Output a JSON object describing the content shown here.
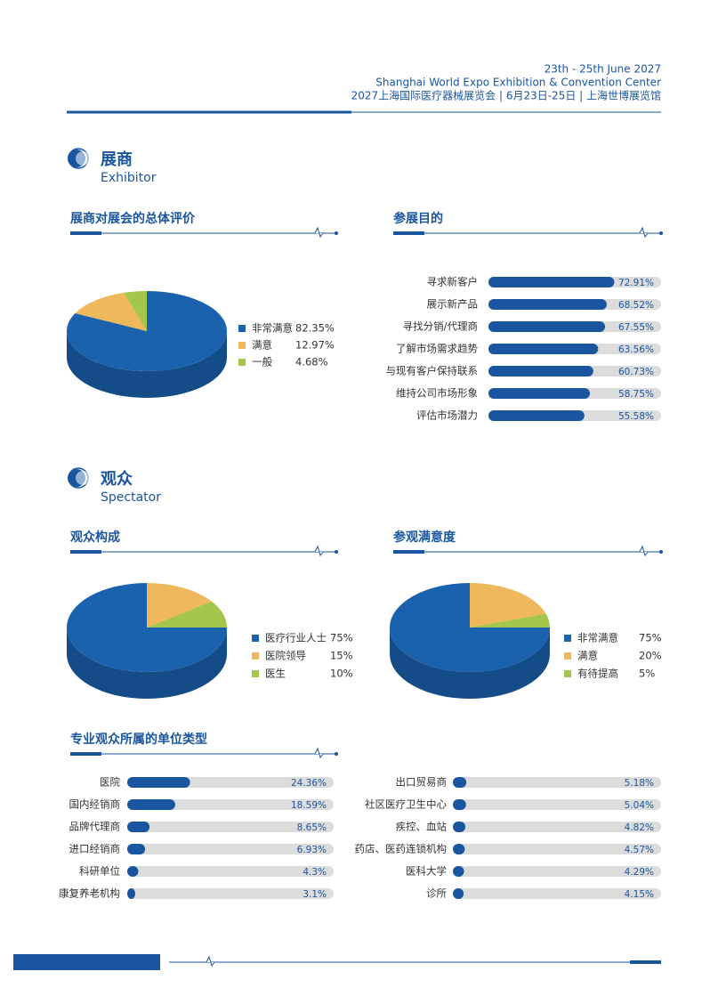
{
  "header": {
    "lines": [
      "23th - 25th June 2027",
      "Shanghai World Expo Exhibition & Convention Center",
      "2027上海国际医疗器械展览会 | 6月23日-25日 | 上海世博展览馆"
    ]
  },
  "sections": [
    {
      "title": "展商",
      "subtitle": "Exhibitor"
    },
    {
      "title": "观众",
      "subtitle": "Spectator"
    }
  ],
  "chart_data": [
    {
      "type": "pie",
      "title": "展商对展会的总体评价",
      "categories": [
        "非常满意",
        "满意",
        "一般"
      ],
      "values": [
        82.35,
        12.97,
        4.68
      ],
      "value_labels": [
        "82.35%",
        "12.97%",
        "4.68%"
      ],
      "colors": [
        "#1a62ad",
        "#efb85c",
        "#a4c64b"
      ],
      "startangle": 0
    },
    {
      "type": "bar",
      "title": "参展目的",
      "categories": [
        "寻求新客户",
        "展示新产品",
        "寻找分销/代理商",
        "了解市场需求趋势",
        "与现有客户保持联系",
        "维持公司市场形象",
        "评估市场潜力"
      ],
      "values": [
        72.91,
        68.52,
        67.55,
        63.56,
        60.73,
        58.75,
        55.58
      ],
      "value_labels": [
        "72.91%",
        "68.52%",
        "67.55%",
        "63.56%",
        "60.73%",
        "58.75%",
        "55.58%"
      ],
      "color": "#1a56a0",
      "track_color": "#dcdcdc",
      "xlim": [
        0,
        100
      ]
    },
    {
      "type": "pie",
      "title": "观众构成",
      "categories": [
        "医疗行业人士",
        "医院领导",
        "医生"
      ],
      "values": [
        75,
        15,
        10
      ],
      "value_labels": [
        "75%",
        "15%",
        "10%"
      ],
      "colors": [
        "#1a62ad",
        "#efb85c",
        "#a4c64b"
      ],
      "startangle": 90
    },
    {
      "type": "pie",
      "title": "参观满意度",
      "categories": [
        "非常满意",
        "满意",
        "有待提高"
      ],
      "values": [
        75,
        20,
        5
      ],
      "value_labels": [
        "75%",
        "20%",
        "5%"
      ],
      "colors": [
        "#1a62ad",
        "#efb85c",
        "#a4c64b"
      ],
      "startangle": 90
    },
    {
      "type": "bar",
      "title": "专业观众所属的单位类型",
      "categories": [
        "医院",
        "国内经销商",
        "品牌代理商",
        "进口经销商",
        "科研单位",
        "康复养老机构",
        "出口贸易商",
        "社区医疗卫生中心",
        "疾控、血站",
        "药店、医药连锁机构",
        "医科大学",
        "诊所"
      ],
      "values": [
        24.36,
        18.59,
        8.65,
        6.93,
        4.3,
        3.1,
        5.18,
        5.04,
        4.82,
        4.57,
        4.29,
        4.15
      ],
      "value_labels": [
        "24.36%",
        "18.59%",
        "8.65%",
        "6.93%",
        "4.3%",
        "3.1%",
        "5.18%",
        "5.04%",
        "4.82%",
        "4.57%",
        "4.29%",
        "4.15%"
      ],
      "color": "#1a56a0",
      "track_color": "#dcdcdc",
      "xlim": [
        0,
        80
      ]
    }
  ]
}
